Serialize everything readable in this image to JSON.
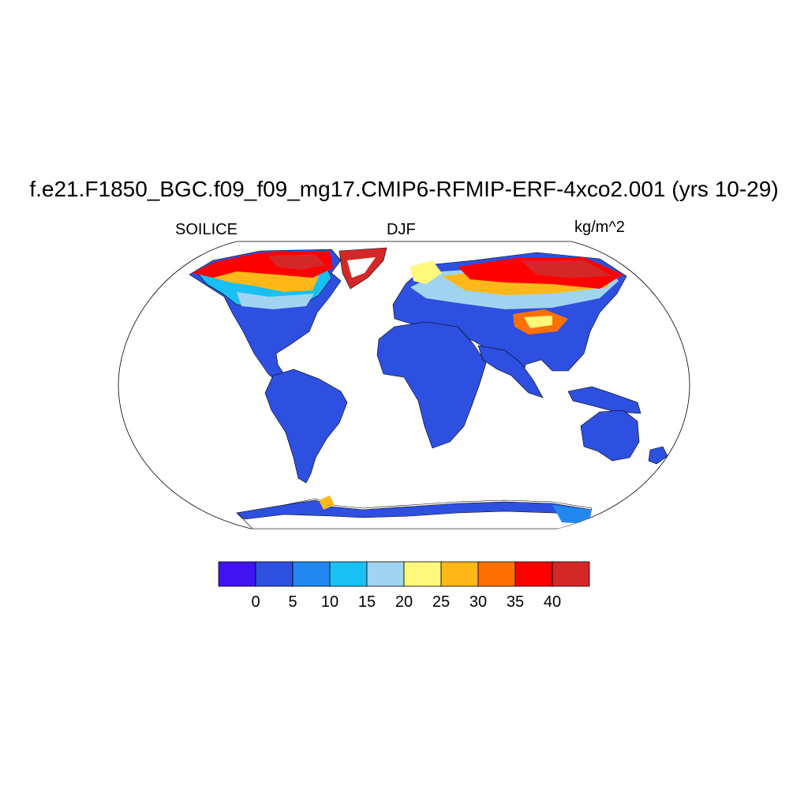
{
  "title": "f.e21.F1850_BGC.f09_f09_mg17.CMIP6-RFMIP-ERF-4xco2.001 (yrs 10-29)",
  "subtitles": {
    "left": "SOILICE",
    "center": "DJF",
    "right": "kg/m^2"
  },
  "map": {
    "projection": "robinson",
    "ocean_color": "#ffffff",
    "coastline_color": "#000000",
    "regions": [
      {
        "name": "north-america",
        "level": "mixed"
      },
      {
        "name": "south-america",
        "level": "low"
      },
      {
        "name": "africa",
        "level": "low"
      },
      {
        "name": "europe",
        "level": "mixed"
      },
      {
        "name": "asia",
        "level": "mixed"
      },
      {
        "name": "australia",
        "level": "low"
      },
      {
        "name": "antarctica",
        "level": "low"
      },
      {
        "name": "greenland",
        "level": "high"
      }
    ]
  },
  "colorbar": {
    "colors": [
      "#4014f0",
      "#2e50e0",
      "#2288f0",
      "#18c0f4",
      "#a0d4f0",
      "#fff87a",
      "#ffb818",
      "#ff7000",
      "#ff0000",
      "#d42828"
    ],
    "tick_labels": [
      "0",
      "5",
      "10",
      "15",
      "20",
      "25",
      "30",
      "35",
      "40"
    ]
  }
}
